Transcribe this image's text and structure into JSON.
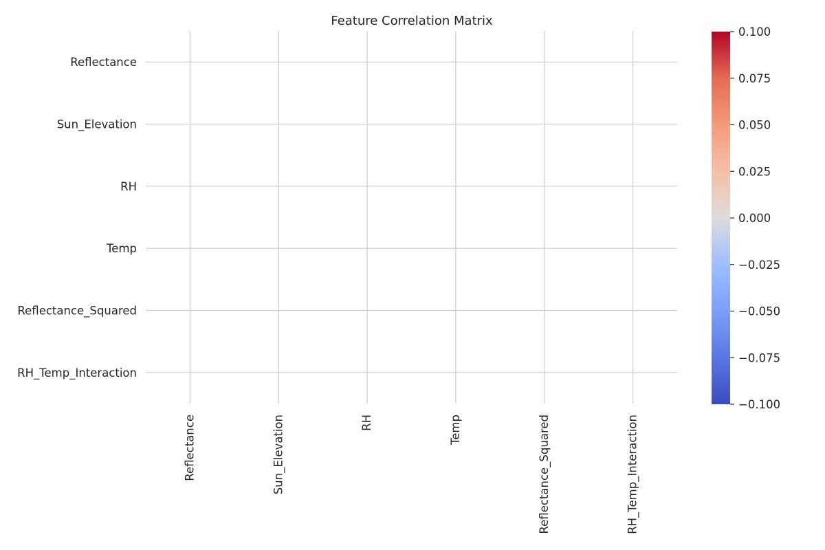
{
  "chart_data": {
    "type": "heatmap",
    "title": "Feature Correlation Matrix",
    "xlabel": "",
    "ylabel": "",
    "rows": [
      "Reflectance",
      "Sun_Elevation",
      "RH",
      "Temp",
      "Reflectance_Squared",
      "RH_Temp_Interaction"
    ],
    "columns": [
      "Reflectance",
      "Sun_Elevation",
      "RH",
      "Temp",
      "Reflectance_Squared",
      "RH_Temp_Interaction"
    ],
    "values": [
      [
        null,
        null,
        null,
        null,
        null,
        null
      ],
      [
        null,
        null,
        null,
        null,
        null,
        null
      ],
      [
        null,
        null,
        null,
        null,
        null,
        null
      ],
      [
        null,
        null,
        null,
        null,
        null,
        null
      ],
      [
        null,
        null,
        null,
        null,
        null,
        null
      ],
      [
        null,
        null,
        null,
        null,
        null,
        null
      ]
    ],
    "colorbar": {
      "colormap": "coolwarm",
      "range": [
        -0.1,
        0.1
      ],
      "ticks": [
        "0.100",
        "0.075",
        "0.050",
        "0.025",
        "0.000",
        "−0.025",
        "−0.050",
        "−0.075",
        "−0.100"
      ]
    },
    "grid": true
  }
}
